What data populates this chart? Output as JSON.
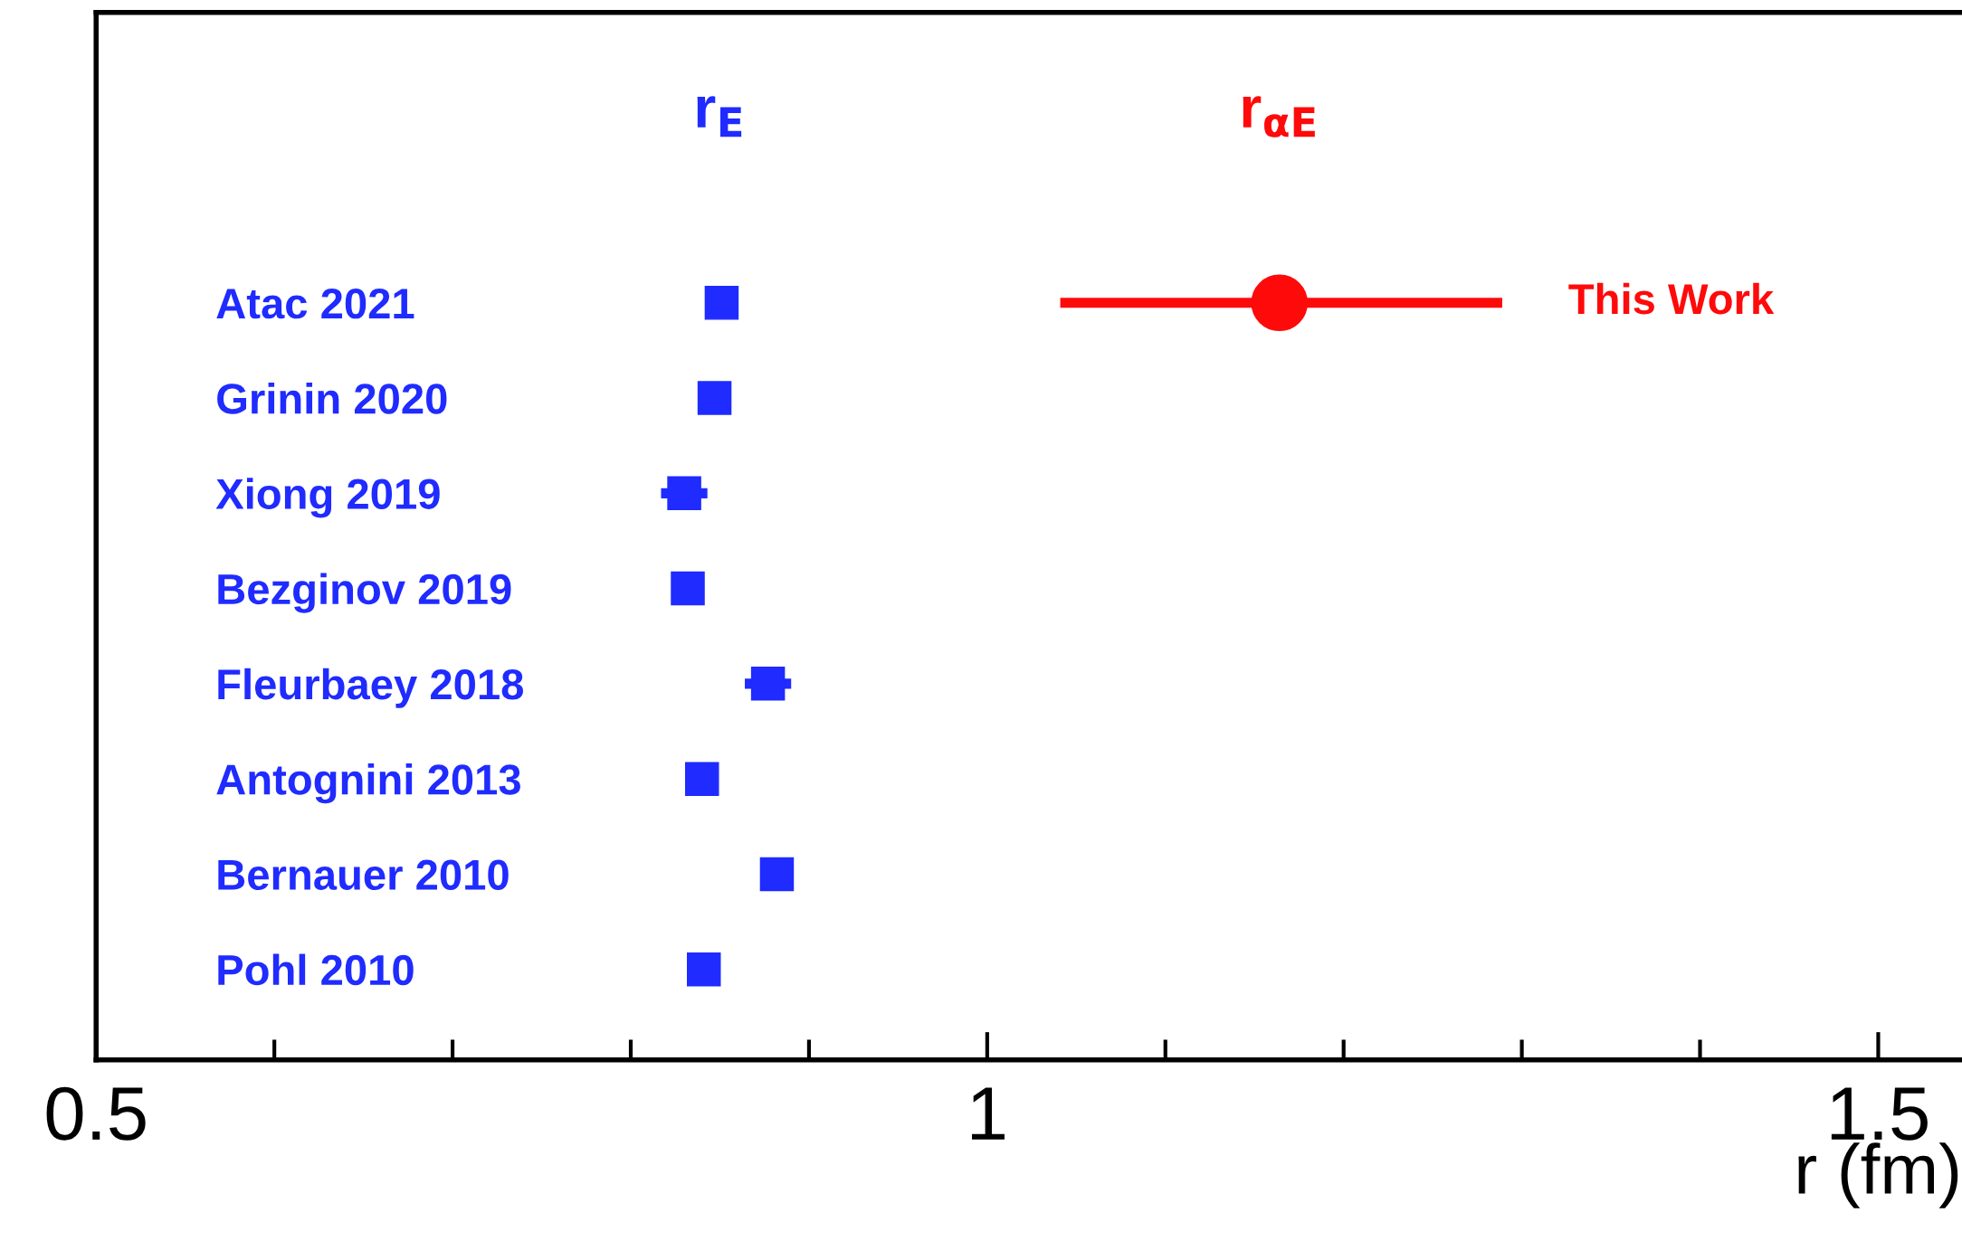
{
  "chart_data": {
    "type": "scatter",
    "orientation": "horizontal",
    "xlabel": "r (fm)",
    "categories": [
      "Atac 2021",
      "Grinin 2020",
      "Xiong 2019",
      "Bezginov 2019",
      "Fleurbaey 2018",
      "Antognini 2013",
      "Bernauer 2010",
      "Pohl 2010"
    ],
    "xlim": [
      0.5,
      1.547
    ],
    "xticks": [
      0.5,
      1,
      1.5
    ],
    "series": [
      {
        "name": "r$_{E}$",
        "color": "#1f2bff",
        "marker": "square",
        "values": [
          0.851,
          0.847,
          0.83,
          0.832,
          0.877,
          0.84,
          0.882,
          0.841
        ],
        "errors": [
          null,
          null,
          0.013,
          0.009,
          0.013,
          null,
          null,
          null
        ]
      },
      {
        "name": "r$_{αE}$",
        "color": "#ff0a0a",
        "marker": "circle",
        "values": [
          1.164,
          null,
          null,
          null,
          null,
          null,
          null,
          null
        ],
        "errors": [
          [
            1.041,
            1.289
          ],
          null,
          null,
          null,
          null,
          null,
          null,
          null
        ]
      }
    ],
    "annotations": [
      "This Work"
    ]
  }
}
